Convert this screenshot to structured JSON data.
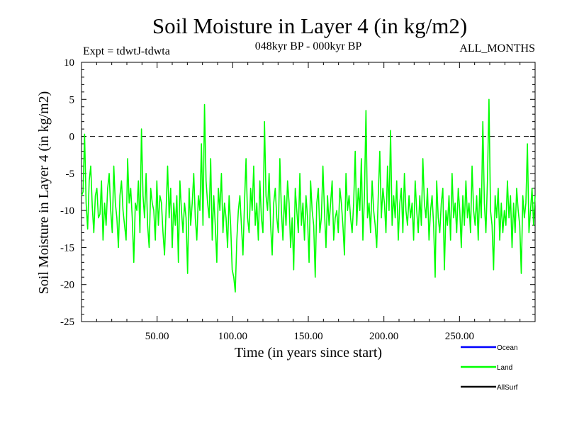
{
  "chart_data": {
    "type": "line",
    "title": "Soil Moisture in Layer 4 (in kg/m2)",
    "subtitle_left": "Expt = tdwtJ-tdwta",
    "subtitle_center": "048kyr BP - 000kyr BP",
    "subtitle_right": "ALL_MONTHS",
    "xlabel": "Time (in years since start)",
    "ylabel": "Soil Moisture in Layer 4 (in kg/m2)",
    "xlim": [
      0,
      300
    ],
    "ylim": [
      -25,
      10
    ],
    "x_ticks": [
      50,
      100,
      150,
      200,
      250
    ],
    "x_tick_labels": [
      "50.00",
      "100.00",
      "150.00",
      "200.00",
      "250.00"
    ],
    "y_ticks": [
      10,
      5,
      0,
      -5,
      -10,
      -15,
      -20,
      -25
    ],
    "y_tick_labels": [
      "10",
      "5",
      "0",
      "-5",
      "-10",
      "-15",
      "-20",
      "-25"
    ],
    "reference_line": {
      "y": 0,
      "style": "dashed"
    },
    "series": [
      {
        "name": "Land",
        "color": "#00ff00",
        "x_start": 0,
        "x_step": 1,
        "values": [
          -8,
          -7.5,
          0.3,
          -9,
          -12.5,
          -6,
          -4,
          -9.5,
          -13,
          -8,
          -7,
          -11,
          -10.5,
          -6,
          -14,
          -9,
          -12,
          -7,
          -5,
          -10,
          -13,
          -4,
          -9,
          -11,
          -15,
          -8,
          -6,
          -10,
          -12,
          -14,
          -3,
          -9,
          -7,
          -11,
          -17,
          -9,
          -10,
          -6,
          -13,
          1,
          -8,
          -11,
          -5,
          -12,
          -15,
          -7,
          -9,
          -10,
          -14,
          -6,
          -12,
          -8,
          -9,
          -13,
          -16,
          -10,
          -4,
          -11,
          -7,
          -15,
          -9,
          -12,
          -8,
          -17,
          -6,
          -10,
          -13,
          -9,
          -11,
          -18.5,
          -7,
          -12,
          -9,
          -5,
          -11,
          -14,
          -8,
          -10,
          -1,
          -12,
          4.3,
          -6,
          -9,
          -11,
          -3,
          -14,
          -8,
          -12,
          -17,
          -7,
          -10,
          -5,
          -13,
          -9,
          -11,
          -15,
          -8,
          -12,
          -18,
          -19,
          -21,
          -14,
          -10,
          -8,
          -12,
          -16,
          -9,
          -3,
          -11,
          -13,
          -7,
          -10,
          -4,
          -12,
          -9,
          -14,
          -6,
          -11,
          -13,
          2,
          -8,
          -10,
          -5,
          -12,
          -16,
          -9,
          -7,
          -11,
          -13,
          -3,
          -10,
          -14,
          -8,
          -12,
          -6,
          -9,
          -15,
          -11,
          -18,
          -7,
          -10,
          -13,
          -5,
          -12,
          -9,
          -14,
          -8,
          -11,
          -17,
          -6,
          -10,
          -12,
          -19,
          -9,
          -7,
          -13,
          -11,
          -4,
          -10,
          -15,
          -8,
          -12,
          -9,
          -6,
          -14,
          -11,
          -10,
          -13,
          -7,
          -9,
          -12,
          -16,
          -5,
          -10,
          -8,
          -11,
          -13,
          -9,
          -2,
          -12,
          -7,
          -10,
          -3,
          -14,
          -8,
          3.5,
          -11,
          -9,
          -13,
          -6,
          -10,
          -12,
          -15,
          -8,
          -2,
          -11,
          -7,
          -9,
          -13,
          -4,
          -10,
          0.8,
          -12,
          -8,
          -11,
          -6,
          -14,
          -9,
          -7,
          -13,
          -5,
          -10,
          -12,
          -8,
          -11,
          -9,
          -14,
          -6,
          -10,
          -13,
          -8,
          -12,
          -3,
          -9,
          -11,
          -7,
          -14,
          -10,
          -8,
          -12,
          -19,
          -6,
          -11,
          -13,
          -9,
          -7,
          -18,
          -10,
          -12,
          -8,
          -14,
          -5,
          -11,
          -9,
          -13,
          -7,
          -10,
          -15,
          -8,
          -12,
          -6,
          -11,
          -9,
          -13,
          -4,
          -10,
          -12,
          -8,
          -14,
          -7,
          -11,
          2,
          -9,
          -13,
          -6,
          5,
          -10,
          -12,
          -18,
          -8,
          -11,
          -7,
          -14,
          -9,
          -13,
          -10,
          -12,
          -6,
          -11,
          -8,
          -15,
          -9,
          -13,
          -7,
          -10,
          -12,
          -18.5,
          -8,
          -11,
          -9,
          -1,
          -13,
          -10,
          -7,
          -12,
          -8
        ]
      }
    ],
    "legend": {
      "placement": "bottom-right",
      "entries": [
        {
          "label": "Ocean",
          "color": "#0000ff"
        },
        {
          "label": "Land",
          "color": "#00ff00"
        },
        {
          "label": "AllSurf",
          "color": "#000000"
        }
      ]
    }
  }
}
